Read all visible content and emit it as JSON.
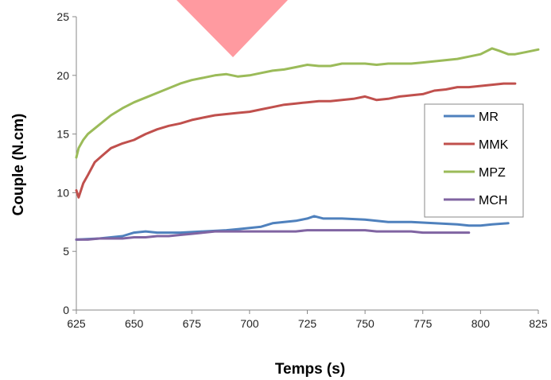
{
  "chart_data": {
    "type": "line",
    "xlabel": "Temps (s)",
    "ylabel": "Couple (N.cm)",
    "xlim": [
      625,
      825
    ],
    "ylim": [
      0,
      25
    ],
    "x_ticks": [
      "625",
      "650",
      "675",
      "700",
      "725",
      "750",
      "775",
      "800",
      "825"
    ],
    "y_ticks": [
      "0",
      "5",
      "10",
      "15",
      "20",
      "25"
    ],
    "grid": false,
    "legend_position": "right",
    "watermark_color": "#ff9aa0",
    "series": [
      {
        "name": "MR",
        "color": "#4f81bd",
        "x": [
          625,
          635,
          640,
          645,
          650,
          655,
          660,
          670,
          680,
          690,
          695,
          700,
          705,
          710,
          715,
          720,
          725,
          728,
          732,
          740,
          750,
          755,
          760,
          770,
          780,
          790,
          795,
          800,
          805,
          812
        ],
        "y": [
          6.0,
          6.1,
          6.2,
          6.3,
          6.6,
          6.7,
          6.6,
          6.6,
          6.7,
          6.8,
          6.9,
          7.0,
          7.1,
          7.4,
          7.5,
          7.6,
          7.8,
          8.0,
          7.8,
          7.8,
          7.7,
          7.6,
          7.5,
          7.5,
          7.4,
          7.3,
          7.2,
          7.2,
          7.3,
          7.4
        ]
      },
      {
        "name": "MMK",
        "color": "#c0504d",
        "x": [
          625,
          626,
          628,
          630,
          633,
          637,
          640,
          645,
          650,
          652,
          655,
          660,
          665,
          670,
          675,
          680,
          685,
          690,
          695,
          700,
          705,
          710,
          715,
          720,
          725,
          730,
          735,
          740,
          745,
          750,
          755,
          760,
          765,
          770,
          775,
          780,
          785,
          790,
          795,
          800,
          805,
          810,
          815
        ],
        "y": [
          10.2,
          9.6,
          10.8,
          11.5,
          12.6,
          13.3,
          13.8,
          14.2,
          14.5,
          14.7,
          15.0,
          15.4,
          15.7,
          15.9,
          16.2,
          16.4,
          16.6,
          16.7,
          16.8,
          16.9,
          17.1,
          17.3,
          17.5,
          17.6,
          17.7,
          17.8,
          17.8,
          17.9,
          18.0,
          18.2,
          17.9,
          18.0,
          18.2,
          18.3,
          18.4,
          18.7,
          18.8,
          19.0,
          19.0,
          19.1,
          19.2,
          19.3,
          19.3
        ]
      },
      {
        "name": "MPZ",
        "color": "#9bbb59",
        "x": [
          625,
          626,
          628,
          630,
          635,
          640,
          645,
          650,
          655,
          660,
          665,
          670,
          675,
          680,
          685,
          690,
          695,
          700,
          705,
          710,
          715,
          720,
          725,
          730,
          735,
          740,
          745,
          750,
          755,
          760,
          765,
          770,
          775,
          780,
          785,
          790,
          795,
          800,
          805,
          808,
          812,
          815,
          820,
          825
        ],
        "y": [
          13.0,
          13.8,
          14.5,
          15.0,
          15.8,
          16.6,
          17.2,
          17.7,
          18.1,
          18.5,
          18.9,
          19.3,
          19.6,
          19.8,
          20.0,
          20.1,
          19.9,
          20.0,
          20.2,
          20.4,
          20.5,
          20.7,
          20.9,
          20.8,
          20.8,
          21.0,
          21.0,
          21.0,
          20.9,
          21.0,
          21.0,
          21.0,
          21.1,
          21.2,
          21.3,
          21.4,
          21.6,
          21.8,
          22.3,
          22.1,
          21.8,
          21.8,
          22.0,
          22.2
        ]
      },
      {
        "name": "MCH",
        "color": "#8064a2",
        "x": [
          625,
          630,
          635,
          640,
          645,
          650,
          655,
          660,
          665,
          670,
          675,
          680,
          685,
          690,
          695,
          700,
          705,
          710,
          715,
          720,
          725,
          730,
          735,
          740,
          745,
          750,
          755,
          760,
          765,
          770,
          775,
          780,
          785,
          790,
          795
        ],
        "y": [
          6.0,
          6.0,
          6.1,
          6.1,
          6.1,
          6.2,
          6.2,
          6.3,
          6.3,
          6.4,
          6.5,
          6.6,
          6.7,
          6.7,
          6.7,
          6.7,
          6.7,
          6.7,
          6.7,
          6.7,
          6.8,
          6.8,
          6.8,
          6.8,
          6.8,
          6.8,
          6.7,
          6.7,
          6.7,
          6.7,
          6.6,
          6.6,
          6.6,
          6.6,
          6.6
        ]
      }
    ]
  }
}
